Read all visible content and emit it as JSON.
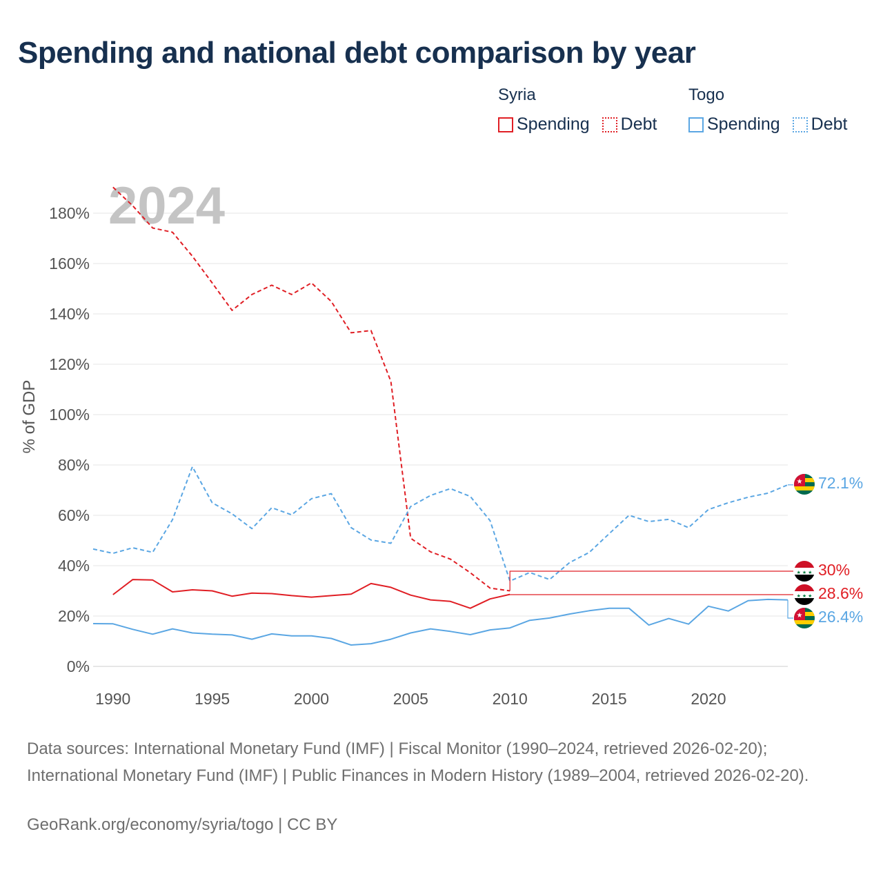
{
  "title": "Spending and national debt comparison by year",
  "legend": [
    {
      "country": "Syria",
      "color": "#e01e24",
      "items": [
        {
          "label": "Spending",
          "style": "solid"
        },
        {
          "label": "Debt",
          "style": "dotted"
        }
      ]
    },
    {
      "country": "Togo",
      "color": "#5aa6e3",
      "items": [
        {
          "label": "Spending",
          "style": "solid"
        },
        {
          "label": "Debt",
          "style": "dotted"
        }
      ]
    }
  ],
  "year_label": "2024",
  "footer": {
    "sources": "Data sources: International Monetary Fund (IMF) | Fiscal Monitor (1990–2024, retrieved 2026-02-20); International Monetary Fund (IMF) | Public Finances in Modern History (1989–2004, retrieved 2026-02-20).",
    "credit": "GeoRank.org/economy/syria/togo | CC BY"
  },
  "chart_data": {
    "type": "line",
    "title": "Spending and national debt comparison by year",
    "xlabel": "",
    "ylabel": "% of GDP",
    "xlim": [
      1989,
      2024
    ],
    "ylim": [
      0,
      190
    ],
    "x_ticks": [
      1990,
      1995,
      2000,
      2005,
      2010,
      2015,
      2020
    ],
    "y_ticks": [
      0,
      20,
      40,
      60,
      80,
      100,
      120,
      140,
      160,
      180
    ],
    "y_tick_suffix": "%",
    "grid": true,
    "series": [
      {
        "name": "Syria Spending",
        "color": "#e01e24",
        "dash": "solid",
        "x": [
          1990,
          1991,
          1992,
          1993,
          1994,
          1995,
          1996,
          1997,
          1998,
          1999,
          2000,
          2001,
          2002,
          2003,
          2004,
          2005,
          2006,
          2007,
          2008,
          2009,
          2010
        ],
        "y": [
          28.5,
          34.5,
          34.3,
          29.6,
          30.4,
          30.0,
          27.9,
          29.1,
          28.9,
          28.1,
          27.5,
          28.1,
          28.7,
          32.9,
          31.4,
          28.3,
          26.4,
          25.8,
          23.1,
          26.8,
          28.6
        ],
        "end_label": "28.6%",
        "end_value": 28.6
      },
      {
        "name": "Syria Debt",
        "color": "#e01e24",
        "dash": "dashed",
        "x": [
          1990,
          1991,
          1992,
          1993,
          1994,
          1995,
          1996,
          1997,
          1998,
          1999,
          2000,
          2001,
          2002,
          2003,
          2004,
          2005,
          2006,
          2007,
          2008,
          2009,
          2010
        ],
        "y": [
          190.3,
          182.9,
          174.1,
          172.4,
          162.9,
          152.3,
          141.4,
          147.7,
          151.4,
          147.7,
          152.3,
          144.9,
          132.5,
          133.4,
          113.2,
          50.9,
          45.5,
          42.6,
          37.2,
          31.1,
          30.0
        ],
        "end_label": "30%",
        "end_value": 30.0
      },
      {
        "name": "Togo Spending",
        "color": "#5aa6e3",
        "dash": "solid",
        "x": [
          1989,
          1990,
          1991,
          1992,
          1993,
          1994,
          1995,
          1996,
          1997,
          1998,
          1999,
          2000,
          2001,
          2002,
          2003,
          2004,
          2005,
          2006,
          2007,
          2008,
          2009,
          2010,
          2011,
          2012,
          2013,
          2014,
          2015,
          2016,
          2017,
          2018,
          2019,
          2020,
          2021,
          2022,
          2023,
          2024
        ],
        "y": [
          17.0,
          16.9,
          14.7,
          12.8,
          14.9,
          13.3,
          12.8,
          12.5,
          10.8,
          12.9,
          12.1,
          12.1,
          11.1,
          8.5,
          9.0,
          10.8,
          13.3,
          14.9,
          13.9,
          12.6,
          14.5,
          15.3,
          18.3,
          19.2,
          20.8,
          22.1,
          23.1,
          23.1,
          16.4,
          19.0,
          16.8,
          23.9,
          22.0,
          26.1,
          26.6,
          26.4
        ],
        "end_label": "26.4%",
        "end_value": 26.4
      },
      {
        "name": "Togo Debt",
        "color": "#5aa6e3",
        "dash": "dashed",
        "x": [
          1989,
          1990,
          1991,
          1992,
          1993,
          1994,
          1995,
          1996,
          1997,
          1998,
          1999,
          2000,
          2001,
          2002,
          2003,
          2004,
          2005,
          2006,
          2007,
          2008,
          2009,
          2010,
          2011,
          2012,
          2013,
          2014,
          2015,
          2016,
          2017,
          2018,
          2019,
          2020,
          2021,
          2022,
          2023,
          2024
        ],
        "y": [
          46.6,
          44.9,
          47.1,
          45.3,
          58.3,
          79.3,
          65.0,
          60.6,
          54.7,
          63.0,
          60.2,
          66.6,
          68.6,
          55.1,
          50.2,
          48.9,
          63.5,
          67.9,
          70.6,
          67.5,
          57.9,
          33.9,
          37.3,
          34.5,
          41.2,
          45.3,
          52.7,
          60.0,
          57.5,
          58.4,
          55.1,
          62.3,
          65.0,
          67.2,
          68.8,
          72.1
        ],
        "end_label": "72.1%",
        "end_value": 72.1
      }
    ]
  }
}
